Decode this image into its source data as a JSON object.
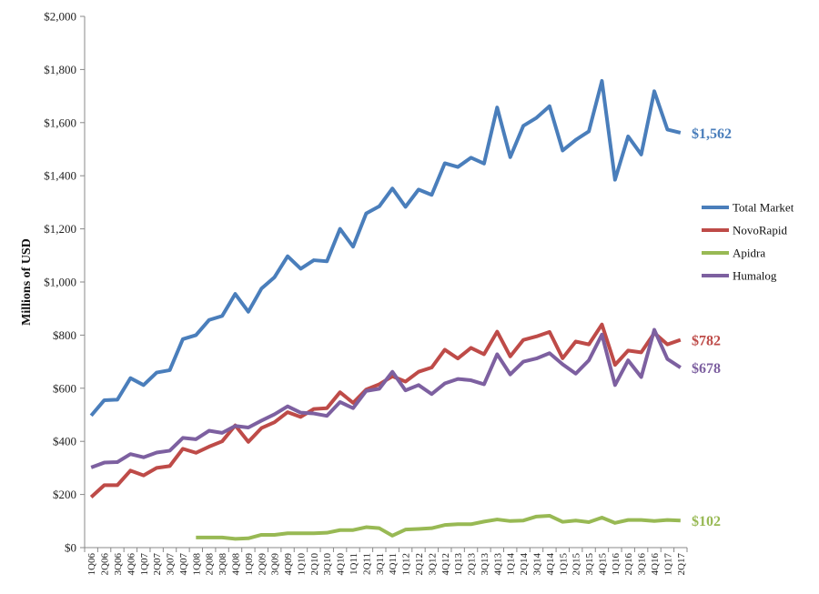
{
  "chart_data": {
    "type": "line",
    "title": "",
    "xlabel": "",
    "ylabel": "Millions of USD",
    "ylim": [
      0,
      2000
    ],
    "y_ticks": [
      "$0",
      "$200",
      "$400",
      "$600",
      "$800",
      "$1,000",
      "$1,200",
      "$1,400",
      "$1,600",
      "$1,800",
      "$2,000"
    ],
    "grid": false,
    "legend": "right",
    "categories": [
      "1Q06",
      "2Q06",
      "3Q06",
      "4Q06",
      "1Q07",
      "2Q07",
      "3Q07",
      "4Q07",
      "1Q08",
      "2Q08",
      "3Q08",
      "4Q08",
      "1Q09",
      "2Q09",
      "3Q09",
      "4Q09",
      "1Q10",
      "2Q10",
      "3Q10",
      "4Q10",
      "1Q11",
      "2Q11",
      "3Q11",
      "4Q11",
      "1Q12",
      "2Q12",
      "3Q12",
      "4Q12",
      "1Q13",
      "2Q13",
      "3Q13",
      "4Q13",
      "1Q14",
      "2Q14",
      "3Q14",
      "4Q14",
      "1Q15",
      "2Q15",
      "3Q15",
      "4Q15",
      "1Q16",
      "2Q16",
      "3Q16",
      "4Q16",
      "1Q17",
      "2Q17"
    ],
    "series": [
      {
        "name": "Total Market",
        "color": "#4a7ebb",
        "end_label": "$1,562",
        "values": [
          497,
          555,
          557,
          638,
          612,
          659,
          668,
          785,
          800,
          857,
          872,
          955,
          888,
          975,
          1018,
          1097,
          1050,
          1082,
          1078,
          1200,
          1133,
          1258,
          1285,
          1352,
          1283,
          1348,
          1328,
          1447,
          1433,
          1468,
          1446,
          1657,
          1470,
          1588,
          1618,
          1662,
          1495,
          1535,
          1567,
          1757,
          1385,
          1548,
          1480,
          1718,
          1574,
          1562
        ]
      },
      {
        "name": "NovoRapid",
        "color": "#be4b48",
        "end_label": "$782",
        "values": [
          190,
          235,
          235,
          290,
          272,
          300,
          307,
          372,
          357,
          380,
          400,
          460,
          398,
          450,
          472,
          510,
          492,
          522,
          525,
          585,
          545,
          595,
          615,
          645,
          625,
          662,
          678,
          745,
          712,
          752,
          728,
          813,
          720,
          782,
          795,
          812,
          713,
          776,
          765,
          840,
          688,
          742,
          735,
          808,
          765,
          782
        ]
      },
      {
        "name": "Apidra",
        "color": "#98b954",
        "end_label": "$102",
        "values": [
          null,
          null,
          null,
          null,
          null,
          null,
          null,
          null,
          38,
          38,
          38,
          33,
          35,
          48,
          48,
          54,
          54,
          54,
          56,
          66,
          66,
          77,
          73,
          45,
          68,
          70,
          73,
          85,
          88,
          88,
          98,
          106,
          100,
          102,
          117,
          120,
          97,
          102,
          96,
          113,
          93,
          104,
          104,
          100,
          104,
          102
        ]
      },
      {
        "name": "Humalog",
        "color": "#7d60a0",
        "end_label": "$678",
        "values": [
          302,
          320,
          322,
          352,
          340,
          358,
          365,
          413,
          408,
          440,
          432,
          458,
          452,
          478,
          502,
          532,
          508,
          505,
          496,
          548,
          525,
          590,
          598,
          662,
          592,
          612,
          578,
          618,
          635,
          630,
          615,
          728,
          652,
          700,
          712,
          732,
          690,
          655,
          705,
          802,
          612,
          705,
          642,
          820,
          710,
          678
        ]
      }
    ]
  }
}
